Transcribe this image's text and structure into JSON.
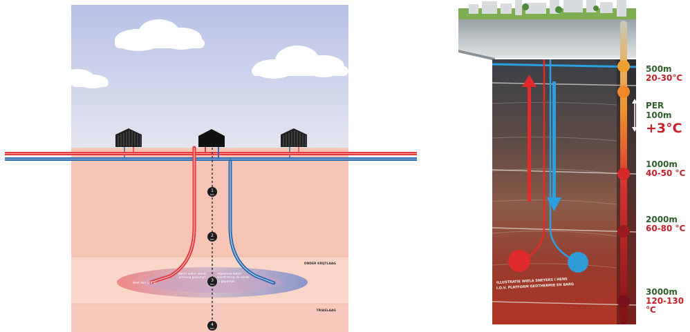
{
  "left_diagram": {
    "layers": [
      {
        "label": "ONDER KRIJTLAAG"
      },
      {
        "label": "TRIASLAAG"
      }
    ],
    "annotations": {
      "hot_water": "Heet dan 140°C",
      "warm_water_up": "Warm water wordt omhoog gepompt",
      "cooled_water_down": "Afgekoeld water wordt terug de aarde in gepompt"
    },
    "markers": [
      {
        "number": "1",
        "unit": "km"
      },
      {
        "number": "2",
        "unit": "km"
      },
      {
        "number": "3",
        "unit": "km"
      },
      {
        "number": "4",
        "unit": "km"
      }
    ],
    "colors": {
      "hot": "#e8383c",
      "cold": "#2b6cb3",
      "sky": "#b8c4e4",
      "ground": "#f6c4b4"
    }
  },
  "right_diagram": {
    "depths": [
      {
        "depth": "500m",
        "temp": "20-30°C"
      },
      {
        "depth": "1000m",
        "temp": "40-50 °C"
      },
      {
        "depth": "2000m",
        "temp": "60-80 °C"
      },
      {
        "depth": "3000m",
        "temp": "120-130 °C"
      }
    ],
    "gradient": {
      "per": "PER 100m",
      "value": "+3°C"
    },
    "credit_line1": "ILLUSTRATIE WIELA SNEYERS I HENS",
    "credit_line2": "I.O.V. PLATFORM GEOTHERMIE EN BARG",
    "colors": {
      "hot": "#e32b2b",
      "cold": "#2aa0e0",
      "depth_text": "#2d5e2a",
      "temp_text": "#c8202a"
    }
  }
}
